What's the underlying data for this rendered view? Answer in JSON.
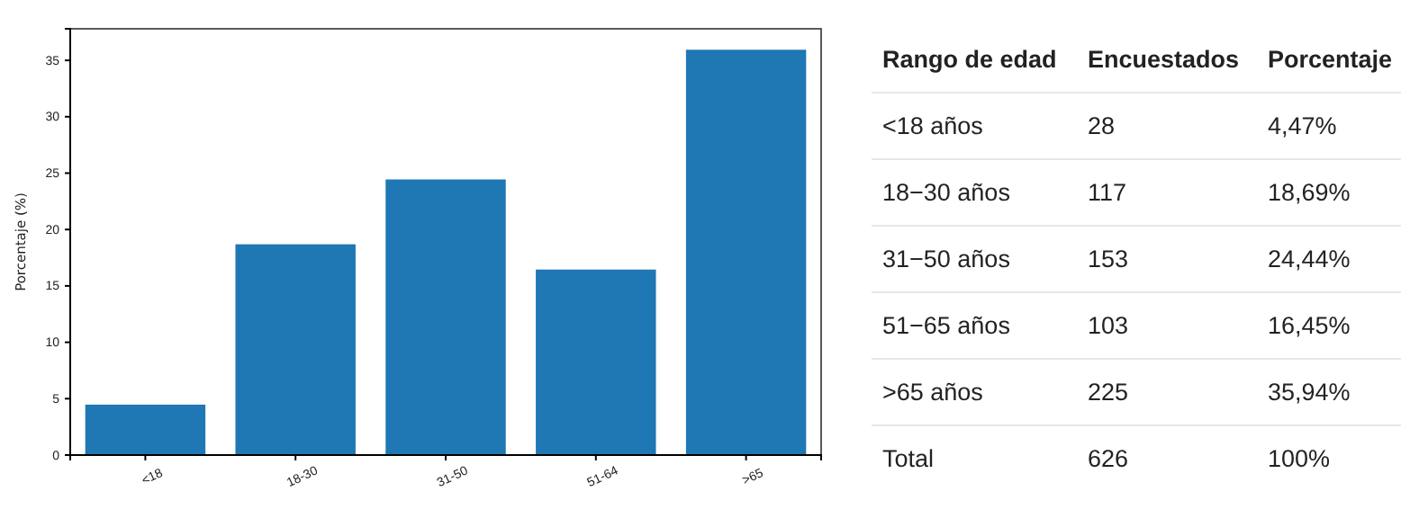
{
  "chart_data": [
    {
      "type": "bar",
      "ylabel": "Porcentaje (%)",
      "categories": [
        "<18",
        "18-30",
        "31-50",
        "51-64",
        ">65"
      ],
      "values": [
        4.47,
        18.69,
        24.44,
        16.45,
        35.94
      ],
      "color": "#1f77b4",
      "ylim": [
        0,
        37.8
      ],
      "yticks": [
        0,
        5,
        10,
        15,
        20,
        25,
        30,
        35
      ]
    },
    {
      "type": "other",
      "annotations": [
        "Rango de edad",
        "Encuestados",
        "Porcentaje",
        "<18 años",
        "28",
        "4,47%",
        "18−30 años",
        "117",
        "18,69%",
        "31−50 años",
        "153",
        "24,44%",
        "51−65 años",
        "103",
        "16,45%",
        ">65 años",
        "225",
        "35,94%",
        "Total",
        "626",
        "100%"
      ]
    }
  ]
}
